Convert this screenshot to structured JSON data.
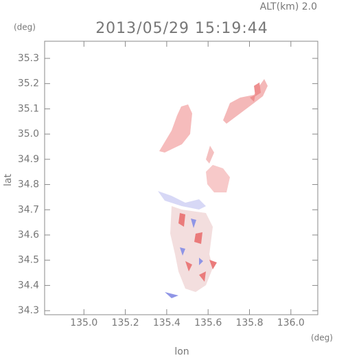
{
  "chart_data": {
    "type": "field",
    "title": "2013/05/29 15:19:44",
    "altitude_label": "ALT(km) 2.0",
    "y_unit": "(deg)",
    "x_unit": "(deg)",
    "y_label": "lat",
    "x_label": "lon",
    "xlim": [
      134.81,
      136.13
    ],
    "ylim": [
      34.284,
      35.368
    ],
    "xticks": [
      {
        "value": 135,
        "label": "135.0"
      },
      135.2,
      135.4,
      135.6,
      135.8,
      {
        "value": 136,
        "label": "136.0"
      }
    ],
    "yticks": [
      34.3,
      34.4,
      34.5,
      34.6,
      34.7,
      34.8,
      34.9,
      {
        "value": 35,
        "label": "35.0"
      },
      35.1,
      35.2,
      35.3
    ]
  }
}
